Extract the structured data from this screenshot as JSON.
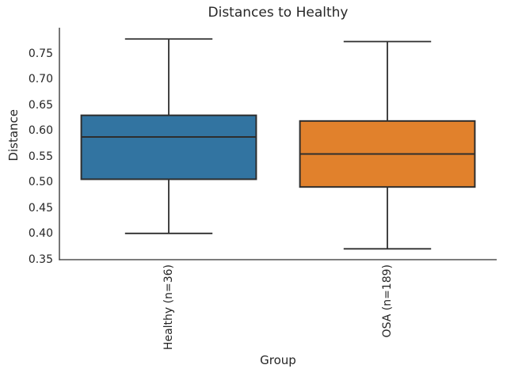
{
  "figure": {
    "title": "Distances to Healthy",
    "xlabel": "Group",
    "ylabel": "Distance"
  },
  "chart_data": {
    "type": "boxplot",
    "title": "Distances to Healthy",
    "xlabel": "Group",
    "ylabel": "Distance",
    "categories": [
      "Healthy (n=36)",
      "OSA (n=189)"
    ],
    "ylim": [
      0.35,
      0.803
    ],
    "yticks": [
      0.35,
      0.4,
      0.45,
      0.5,
      0.55,
      0.6,
      0.65,
      0.7,
      0.75
    ],
    "grid": false,
    "legend_position": "none",
    "series": [
      {
        "name": "Healthy (n=36)",
        "n": 36,
        "whisker_low": 0.401,
        "q1": 0.506,
        "median": 0.588,
        "q3": 0.63,
        "whisker_high": 0.778,
        "fill_color": "#3274a1"
      },
      {
        "name": "OSA (n=189)",
        "n": 189,
        "whisker_low": 0.371,
        "q1": 0.491,
        "median": 0.555,
        "q3": 0.619,
        "whisker_high": 0.773,
        "fill_color": "#e1812c"
      }
    ],
    "line_color": "#2e2e2e",
    "text_color": "#262626",
    "background_color": "#ffffff"
  }
}
